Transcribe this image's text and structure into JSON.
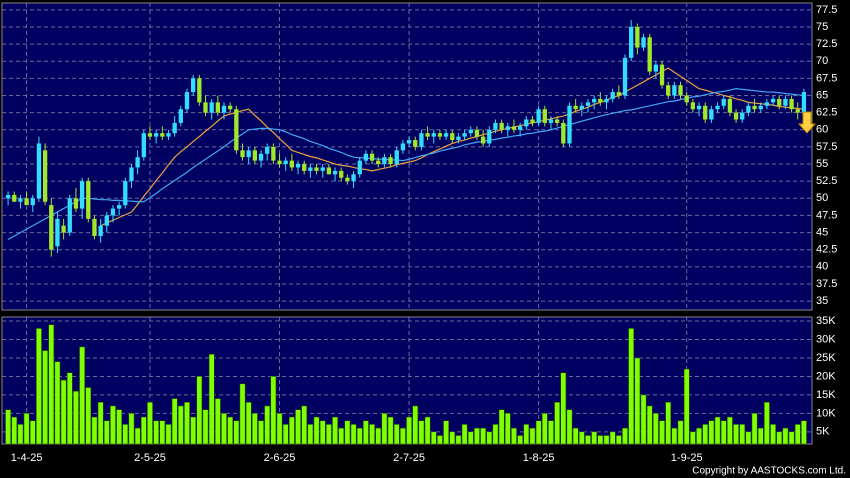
{
  "chart_data": {
    "type": "candlestick",
    "categories": [
      null,
      null,
      null,
      "1-4-25",
      null,
      null,
      null,
      null,
      null,
      null,
      null,
      null,
      null,
      null,
      null,
      null,
      null,
      null,
      null,
      null,
      null,
      null,
      null,
      "2-5-25",
      null,
      null,
      null,
      null,
      null,
      null,
      null,
      null,
      null,
      null,
      null,
      null,
      null,
      null,
      null,
      null,
      null,
      null,
      null,
      null,
      "2-6-25",
      null,
      null,
      null,
      null,
      null,
      null,
      null,
      null,
      null,
      null,
      null,
      null,
      null,
      null,
      null,
      null,
      null,
      null,
      null,
      null,
      "2-7-25",
      null,
      null,
      null,
      null,
      null,
      null,
      null,
      null,
      null,
      null,
      null,
      null,
      null,
      null,
      null,
      null,
      null,
      null,
      null,
      null,
      "1-8-25",
      null,
      null,
      null,
      null,
      null,
      null,
      null,
      null,
      null,
      null,
      null,
      null,
      null,
      null,
      null,
      null,
      null,
      null,
      null,
      null,
      null,
      null,
      null,
      "1-9-25",
      null,
      null,
      null,
      null,
      null,
      null,
      null,
      null,
      null,
      null,
      null,
      null,
      null,
      null,
      null,
      null,
      null,
      null,
      null
    ],
    "ohlc": [
      [
        50,
        51,
        49,
        50.5
      ],
      [
        50.5,
        51,
        49.5,
        49.5
      ],
      [
        49.5,
        50.5,
        48.5,
        50
      ],
      [
        50,
        51,
        49,
        49
      ],
      [
        49,
        50.5,
        48,
        50
      ],
      [
        50,
        59,
        49.5,
        58
      ],
      [
        57,
        58,
        49,
        49.5
      ],
      [
        49,
        50,
        41.5,
        42.5
      ],
      [
        43,
        48,
        42,
        47
      ],
      [
        46,
        47,
        44,
        45
      ],
      [
        45,
        50.5,
        44.5,
        50
      ],
      [
        50,
        51.5,
        48,
        48.5
      ],
      [
        48.5,
        53,
        47,
        52.5
      ],
      [
        52.5,
        53,
        46.5,
        47
      ],
      [
        47,
        47.5,
        44,
        44.5
      ],
      [
        44.5,
        47,
        43.5,
        46
      ],
      [
        46,
        48,
        45,
        47.5
      ],
      [
        47.5,
        49,
        46.5,
        48.5
      ],
      [
        48.5,
        49.5,
        47.5,
        49
      ],
      [
        49,
        53,
        48.5,
        52.5
      ],
      [
        52.5,
        55,
        51.5,
        54.5
      ],
      [
        54.5,
        57,
        53.5,
        56
      ],
      [
        56,
        60,
        55.5,
        59.5
      ],
      [
        59.5,
        60.5,
        58.5,
        59
      ],
      [
        59,
        60,
        58,
        59.5
      ],
      [
        59.5,
        60.5,
        58.5,
        59
      ],
      [
        59,
        60,
        58.5,
        59.5
      ],
      [
        59.5,
        62,
        59,
        61
      ],
      [
        61,
        63.5,
        60.5,
        63
      ],
      [
        63,
        66,
        62.5,
        65.5
      ],
      [
        65.5,
        68,
        65,
        67.5
      ],
      [
        67.5,
        68,
        63.5,
        64
      ],
      [
        64,
        65,
        62,
        62.5
      ],
      [
        62.5,
        64.5,
        61.5,
        64
      ],
      [
        64,
        65,
        62,
        62.5
      ],
      [
        62.5,
        64,
        61.5,
        63.5
      ],
      [
        63.5,
        64,
        62.5,
        63
      ],
      [
        63,
        63.5,
        56.5,
        57
      ],
      [
        57,
        58,
        55.5,
        56
      ],
      [
        56,
        57.5,
        55,
        57
      ],
      [
        57,
        57.5,
        55,
        55.5
      ],
      [
        55.5,
        57,
        54.5,
        56.5
      ],
      [
        56.5,
        58,
        55.5,
        57.5
      ],
      [
        57.5,
        58,
        55,
        55.5
      ],
      [
        55.5,
        56.5,
        54.5,
        55
      ],
      [
        55,
        56,
        54,
        55.5
      ],
      [
        55.5,
        56.5,
        54,
        54.5
      ],
      [
        54.5,
        55.5,
        53.5,
        55
      ],
      [
        55,
        55.5,
        53.5,
        54
      ],
      [
        54,
        55,
        53,
        54.5
      ],
      [
        54.5,
        55,
        53.5,
        54
      ],
      [
        54,
        55,
        53,
        54.5
      ],
      [
        54.5,
        55,
        53.5,
        53.5
      ],
      [
        53.5,
        54.5,
        52.5,
        54
      ],
      [
        54,
        54.5,
        52.5,
        53
      ],
      [
        53,
        53.5,
        52,
        52.5
      ],
      [
        52.5,
        54,
        51.5,
        53.5
      ],
      [
        53.5,
        56,
        53,
        55.5
      ],
      [
        55.5,
        57,
        55,
        56.5
      ],
      [
        56.5,
        57,
        55,
        55.5
      ],
      [
        55.5,
        56,
        54.5,
        55
      ],
      [
        55,
        56.5,
        54.5,
        56
      ],
      [
        56,
        56.5,
        54.5,
        55
      ],
      [
        55,
        57.5,
        54.5,
        57
      ],
      [
        57,
        58.5,
        56.5,
        58
      ],
      [
        58,
        59,
        57.5,
        58.5
      ],
      [
        58.5,
        59,
        57,
        57.5
      ],
      [
        57.5,
        60,
        57,
        59.5
      ],
      [
        59.5,
        60.5,
        58.5,
        59
      ],
      [
        59,
        60,
        58,
        59.5
      ],
      [
        59.5,
        60,
        58.5,
        59
      ],
      [
        59,
        60,
        58.5,
        59.5
      ],
      [
        59.5,
        60,
        58,
        58.5
      ],
      [
        58.5,
        59.5,
        58,
        59
      ],
      [
        59,
        60,
        58.5,
        59.5
      ],
      [
        59.5,
        60.5,
        59,
        60
      ],
      [
        60,
        60.5,
        58.5,
        59
      ],
      [
        59,
        60,
        57.5,
        58
      ],
      [
        58,
        60.5,
        57.5,
        60
      ],
      [
        60,
        61.5,
        59.5,
        61
      ],
      [
        61,
        61.5,
        59.5,
        60
      ],
      [
        60,
        61,
        59,
        60.5
      ],
      [
        60.5,
        61.5,
        59.5,
        60
      ],
      [
        60,
        61,
        59,
        60.5
      ],
      [
        60.5,
        62,
        60,
        61.5
      ],
      [
        61.5,
        62,
        60.5,
        61
      ],
      [
        61,
        63.5,
        60.5,
        63
      ],
      [
        63,
        63.5,
        60.5,
        61
      ],
      [
        61,
        62,
        60,
        61.5
      ],
      [
        61.5,
        62,
        60.5,
        61
      ],
      [
        61,
        61.5,
        57.5,
        58
      ],
      [
        58,
        64,
        57.5,
        63.5
      ],
      [
        63.5,
        64.5,
        62.5,
        63
      ],
      [
        63,
        64,
        62,
        63.5
      ],
      [
        63.5,
        64.5,
        62.5,
        64
      ],
      [
        64,
        65,
        63,
        64.5
      ],
      [
        64.5,
        65.5,
        63.5,
        64
      ],
      [
        64,
        65,
        63,
        64.5
      ],
      [
        64.5,
        66,
        64,
        65.5
      ],
      [
        65.5,
        66.5,
        64.5,
        65
      ],
      [
        65,
        71,
        64.5,
        70.5
      ],
      [
        70.5,
        76,
        70,
        75
      ],
      [
        75,
        75.5,
        71,
        72
      ],
      [
        72,
        74,
        71.5,
        73.5
      ],
      [
        73.5,
        74,
        68,
        68.5
      ],
      [
        68.5,
        70,
        67.5,
        69.5
      ],
      [
        69.5,
        70,
        66,
        66.5
      ],
      [
        66.5,
        67,
        64.5,
        65
      ],
      [
        65,
        67,
        64.5,
        66.5
      ],
      [
        66.5,
        67,
        64.5,
        65
      ],
      [
        65,
        65.5,
        63.5,
        64
      ],
      [
        64,
        64.5,
        62.5,
        63
      ],
      [
        63,
        64,
        62,
        63.5
      ],
      [
        63.5,
        64,
        61,
        61.5
      ],
      [
        61.5,
        63.5,
        61,
        63
      ],
      [
        63,
        64,
        62.5,
        63.5
      ],
      [
        63.5,
        65,
        63,
        64.5
      ],
      [
        64.5,
        65,
        62,
        62.5
      ],
      [
        62.5,
        63,
        61,
        61.5
      ],
      [
        61.5,
        63,
        61,
        62.5
      ],
      [
        62.5,
        64,
        62,
        63.5
      ],
      [
        63.5,
        64.5,
        62.5,
        63
      ],
      [
        63,
        64,
        62.5,
        63.5
      ],
      [
        63.5,
        64.5,
        63,
        64
      ],
      [
        64,
        65,
        63.5,
        64.5
      ],
      [
        64.5,
        65,
        63,
        63.5
      ],
      [
        63.5,
        65,
        63,
        64.5
      ],
      [
        64.5,
        65,
        62.5,
        63
      ],
      [
        63,
        64,
        61.5,
        62.5
      ],
      [
        62.5,
        66,
        62,
        65.5
      ]
    ],
    "volume": [
      11000,
      9000,
      7000,
      10000,
      8000,
      33000,
      27000,
      34000,
      24000,
      19000,
      21000,
      16000,
      28000,
      17000,
      9000,
      13000,
      8000,
      12000,
      11000,
      7000,
      10000,
      6000,
      9000,
      13000,
      8000,
      8000,
      7000,
      14000,
      12000,
      13000,
      9000,
      20000,
      11000,
      26000,
      14000,
      10000,
      9000,
      8000,
      18000,
      13000,
      10000,
      8000,
      12000,
      20000,
      10000,
      7000,
      9000,
      11000,
      12000,
      7000,
      9000,
      8000,
      7000,
      9000,
      6000,
      8000,
      7000,
      6000,
      8000,
      7000,
      6000,
      10000,
      9000,
      7000,
      6000,
      9000,
      12000,
      8000,
      9000,
      5000,
      4000,
      8000,
      5000,
      4000,
      7000,
      5000,
      6000,
      6000,
      5000,
      7000,
      11000,
      10000,
      6000,
      4000,
      7000,
      6000,
      8000,
      10000,
      8000,
      13000,
      21000,
      11000,
      6000,
      5000,
      4000,
      5000,
      4000,
      4000,
      5000,
      4000,
      6000,
      33000,
      25000,
      15000,
      12000,
      10000,
      8000,
      13000,
      6000,
      8000,
      22000,
      5000,
      6000,
      7000,
      8000,
      9000,
      8000,
      9000,
      7000,
      7000,
      5000,
      10000,
      6000,
      13000,
      7000,
      5000,
      6000,
      5000,
      7000,
      8000
    ],
    "lines": [
      {
        "color": "#f0a040",
        "values": [
          null,
          null,
          null,
          null,
          null,
          null,
          null,
          null,
          null,
          null,
          null,
          null,
          null,
          null,
          null,
          46,
          46.4,
          46.8,
          47.2,
          47.6,
          48,
          49.1,
          50.3,
          51.4,
          52.6,
          53.7,
          54.9,
          56,
          56.8,
          57.5,
          58.3,
          59,
          59.8,
          60.5,
          61.3,
          62,
          62.3,
          62.5,
          62.8,
          63,
          62.1,
          61.3,
          60.4,
          59.6,
          58.7,
          57.9,
          57,
          56.7,
          56.4,
          56.1,
          55.9,
          55.6,
          55.3,
          55,
          54.8,
          54.7,
          54.5,
          54.3,
          54.2,
          54,
          54.2,
          54.4,
          54.6,
          54.9,
          55.1,
          55.3,
          55.5,
          55.9,
          56.4,
          56.8,
          57.2,
          57.6,
          58,
          58.3,
          58.5,
          58.8,
          59,
          59.3,
          59.5,
          59.8,
          60,
          60.2,
          60.4,
          60.6,
          60.8,
          61,
          61.2,
          61.4,
          61.6,
          61.8,
          62,
          62.3,
          62.7,
          63,
          63.3,
          63.7,
          64,
          64.3,
          64.7,
          65,
          65.5,
          66,
          66.5,
          67,
          67.5,
          68,
          68.5,
          69,
          68.4,
          67.8,
          67.2,
          66.6,
          66,
          65.8,
          65.5,
          65.3,
          65,
          64.8,
          64.5,
          64.3,
          64,
          63.9,
          63.8,
          63.7,
          63.6,
          63.4,
          63.3,
          63.2,
          63.1,
          63
        ]
      },
      {
        "color": "#3fa9f5",
        "values": [
          44,
          44.5,
          45,
          45.5,
          46,
          46.5,
          47,
          47.5,
          48,
          48.5,
          49,
          49.5,
          50,
          50,
          49.9,
          49.8,
          49.8,
          49.7,
          49.7,
          49.6,
          49.6,
          49.5,
          49.5,
          50.1,
          50.7,
          51.4,
          52,
          52.6,
          53.2,
          53.8,
          54.5,
          55.1,
          55.7,
          56.3,
          56.9,
          57.5,
          58.2,
          58.8,
          59.4,
          60,
          60.1,
          60.2,
          60.2,
          60.1,
          60,
          59.7,
          59.3,
          59,
          58.7,
          58.3,
          58,
          57.7,
          57.3,
          57,
          56.7,
          56.3,
          56,
          55.9,
          55.9,
          55.8,
          55.7,
          55.7,
          55.6,
          55.6,
          55.5,
          55.7,
          55.95,
          56.2,
          56.4,
          56.6,
          56.9,
          57.1,
          57.3,
          57.5,
          57.8,
          58,
          58.2,
          58.3,
          58.5,
          58.6,
          58.8,
          58.9,
          59.1,
          59.2,
          59.4,
          59.5,
          59.7,
          59.8,
          60,
          60.25,
          60.5,
          60.75,
          61,
          61.25,
          61.5,
          61.75,
          62,
          62.2,
          62.4,
          62.6,
          62.8,
          62.9,
          63.1,
          63.3,
          63.5,
          63.7,
          63.9,
          64.1,
          64.2,
          64.4,
          64.6,
          64.8,
          64.9,
          65.1,
          65.3,
          65.5,
          65.6,
          65.8,
          66,
          65.9,
          65.8,
          65.7,
          65.6,
          65.5,
          65.5,
          65.4,
          65.3,
          65.2,
          65.1,
          65
        ]
      }
    ],
    "up_color": "#33ddff",
    "down_color": "#a0e82a",
    "volume_color": "#80ff00",
    "ylim": [
      33.7,
      78.5
    ],
    "yticks": [
      35,
      37.5,
      40,
      42.5,
      45,
      47.5,
      50,
      52.5,
      55,
      57.5,
      60,
      62.5,
      65,
      67.5,
      70,
      72.5,
      75,
      77.5
    ],
    "vlim": [
      1700,
      36100
    ],
    "vticks": [
      {
        "value": 5000,
        "label": "5K"
      },
      {
        "value": 10000,
        "label": "10K"
      },
      {
        "value": 15000,
        "label": "15K"
      },
      {
        "value": 20000,
        "label": "20K"
      },
      {
        "value": 25000,
        "label": "25K"
      },
      {
        "value": 30000,
        "label": "30K"
      },
      {
        "value": 35000,
        "label": "35K"
      }
    ],
    "grid": true,
    "copyright": "Copyright by AASTOCKS.com Ltd."
  }
}
